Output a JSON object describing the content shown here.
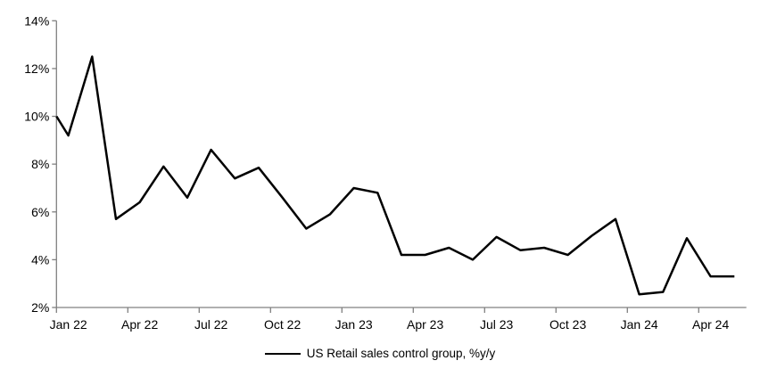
{
  "chart_data": {
    "type": "line",
    "title": "",
    "xlabel": "",
    "ylabel": "",
    "ylim": [
      2,
      14
    ],
    "ytick_step": 2,
    "y_tick_labels": [
      "2%",
      "4%",
      "6%",
      "8%",
      "10%",
      "12%",
      "14%"
    ],
    "x_tick_labels": [
      "Jan 22",
      "Apr 22",
      "Jul 22",
      "Oct 22",
      "Jan 23",
      "Apr 23",
      "Jul 23",
      "Oct 23",
      "Jan 24",
      "Apr 24"
    ],
    "grid": false,
    "legend_position": "bottom-center",
    "axis_color": "#808080",
    "background_color": "#ffffff",
    "edge_entry": {
      "value": 10.0
    },
    "series": [
      {
        "name": "US Retail sales control group, %y/y",
        "color": "#000000",
        "x": [
          "Jan 22",
          "Feb 22",
          "Mar 22",
          "Apr 22",
          "May 22",
          "Jun 22",
          "Jul 22",
          "Aug 22",
          "Sep 22",
          "Oct 22",
          "Nov 22",
          "Dec 22",
          "Jan 23",
          "Feb 23",
          "Mar 23",
          "Apr 23",
          "May 23",
          "Jun 23",
          "Jul 23",
          "Aug 23",
          "Sep 23",
          "Oct 23",
          "Nov 23",
          "Dec 23",
          "Jan 24",
          "Feb 24",
          "Mar 24",
          "Apr 24",
          "May 24"
        ],
        "values": [
          9.2,
          12.5,
          5.7,
          6.4,
          7.9,
          6.6,
          8.6,
          7.4,
          7.85,
          6.6,
          5.3,
          5.9,
          7.0,
          6.8,
          4.2,
          4.2,
          4.5,
          4.0,
          4.95,
          4.4,
          4.5,
          4.2,
          5.0,
          5.7,
          2.55,
          2.65,
          4.9,
          3.3,
          3.3
        ]
      }
    ]
  }
}
